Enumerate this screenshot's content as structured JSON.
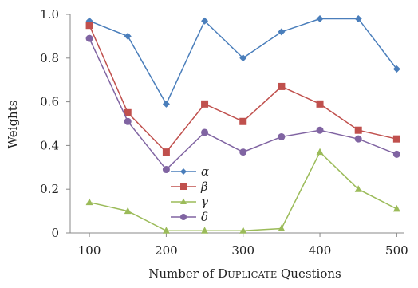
{
  "chart_data": {
    "type": "line",
    "title": "",
    "xlabel": "Number of DUPLICATE Questions",
    "ylabel": "Weights",
    "x": [
      100,
      150,
      200,
      250,
      300,
      350,
      400,
      450,
      500
    ],
    "xticks": [
      "100",
      "200",
      "300",
      "400",
      "500"
    ],
    "xtick_values": [
      100,
      200,
      300,
      400,
      500
    ],
    "yticks": [
      "0",
      "0.2",
      "0.4",
      "0.6",
      "0.8",
      "1.0"
    ],
    "ytick_values": [
      0,
      0.2,
      0.4,
      0.6,
      0.8,
      1.0
    ],
    "xlim": [
      75,
      510
    ],
    "ylim": [
      0,
      1.0
    ],
    "grid": false,
    "legend_position": "center-left",
    "series": [
      {
        "name": "α",
        "marker": "diamond",
        "color": "#4a7ebb",
        "values": [
          0.97,
          0.9,
          0.59,
          0.97,
          0.8,
          0.92,
          0.98,
          0.98,
          0.75
        ]
      },
      {
        "name": "β",
        "marker": "square",
        "color": "#c0504d",
        "values": [
          0.95,
          0.55,
          0.37,
          0.59,
          0.51,
          0.67,
          0.59,
          0.47,
          0.43
        ]
      },
      {
        "name": "γ",
        "marker": "triangle",
        "color": "#9bbb59",
        "values": [
          0.14,
          0.1,
          0.01,
          0.01,
          0.01,
          0.02,
          0.37,
          0.2,
          0.11
        ]
      },
      {
        "name": "δ",
        "marker": "circle",
        "color": "#8064a2",
        "values": [
          0.89,
          0.51,
          0.29,
          0.46,
          0.37,
          0.44,
          0.47,
          0.43,
          0.36
        ]
      }
    ]
  }
}
